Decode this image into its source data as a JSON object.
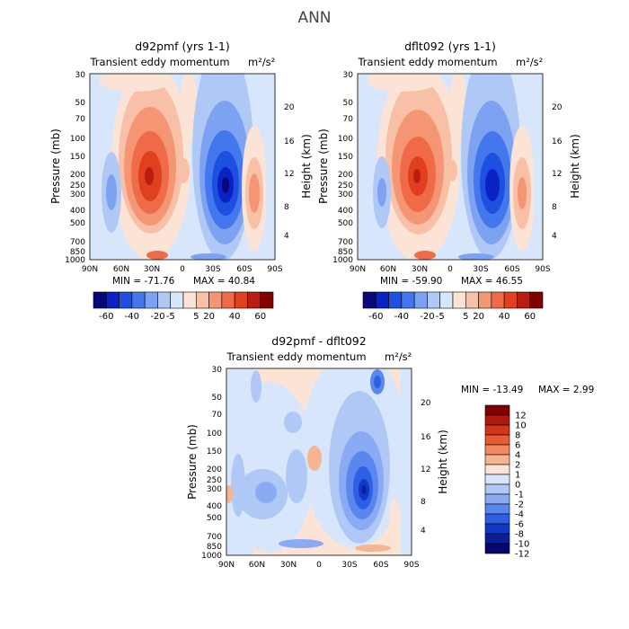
{
  "title": "ANN",
  "chart_data": [
    {
      "type": "heatmap",
      "title": "d92pmf (yrs 1-1)",
      "subtitle": "Transient eddy momentum",
      "units": "m²/s²",
      "ylabel": "Pressure (mb)",
      "ylabel_right": "Height (km)",
      "x_ticks": [
        "90N",
        "60N",
        "30N",
        "0",
        "30S",
        "60S",
        "90S"
      ],
      "y_ticks": [
        "30",
        "50",
        "70",
        "100",
        "150",
        "200",
        "250",
        "300",
        "400",
        "500",
        "700",
        "850",
        "1000"
      ],
      "y_ticks_right": [
        "20",
        "16",
        "12",
        "8",
        "4"
      ],
      "min_label": "MIN = -71.76",
      "max_label": "MAX = 40.84",
      "min": -71.76,
      "max": 40.84,
      "colorbar_labels": [
        "-60",
        "-40",
        "-20",
        "-5",
        "5",
        "20",
        "40",
        "60"
      ]
    },
    {
      "type": "heatmap",
      "title": "dflt092 (yrs 1-1)",
      "subtitle": "Transient eddy momentum",
      "units": "m²/s²",
      "ylabel": "Pressure (mb)",
      "ylabel_right": "Height (km)",
      "x_ticks": [
        "90N",
        "60N",
        "30N",
        "0",
        "30S",
        "60S",
        "90S"
      ],
      "y_ticks": [
        "30",
        "50",
        "70",
        "100",
        "150",
        "200",
        "250",
        "300",
        "400",
        "500",
        "700",
        "850",
        "1000"
      ],
      "y_ticks_right": [
        "20",
        "16",
        "12",
        "8",
        "4"
      ],
      "min_label": "MIN = -59.90",
      "max_label": "MAX = 46.55",
      "min": -59.9,
      "max": 46.55,
      "colorbar_labels": [
        "-60",
        "-40",
        "-20",
        "-5",
        "5",
        "20",
        "40",
        "60"
      ]
    },
    {
      "type": "heatmap",
      "title": "d92pmf - dflt092",
      "subtitle": "Transient eddy momentum",
      "units": "m²/s²",
      "ylabel": "Pressure (mb)",
      "ylabel_right": "Height (km)",
      "x_ticks": [
        "90N",
        "60N",
        "30N",
        "0",
        "30S",
        "60S",
        "90S"
      ],
      "y_ticks": [
        "30",
        "50",
        "70",
        "100",
        "150",
        "200",
        "250",
        "300",
        "400",
        "500",
        "700",
        "850",
        "1000"
      ],
      "y_ticks_right": [
        "20",
        "16",
        "12",
        "8",
        "4"
      ],
      "min_label": "MIN = -13.49",
      "max_label": "MAX =   2.99",
      "min": -13.49,
      "max": 2.99,
      "colorbar_labels": [
        "12",
        "10",
        "8",
        "6",
        "4",
        "2",
        "1",
        "0",
        "-1",
        "-2",
        "-4",
        "-6",
        "-8",
        "-10",
        "-12"
      ]
    }
  ],
  "colors": {
    "abs_scale": [
      "#08087a",
      "#0a22c4",
      "#1d4fe0",
      "#4477ee",
      "#7ea2f2",
      "#b0c8f6",
      "#d8e6fb",
      "#fbe4d5",
      "#f8c0a6",
      "#f49674",
      "#ef6a46",
      "#e0401e",
      "#b81d10",
      "#800000"
    ],
    "diff_scale": [
      "#800000",
      "#b01a0e",
      "#d2351a",
      "#ea5a33",
      "#f28a62",
      "#f7b493",
      "#fbe4d5",
      "#d8e6fb",
      "#b0c8f6",
      "#8aaaf3",
      "#5a87ee",
      "#2f5fe4",
      "#1238c8",
      "#0a1e9a",
      "#06066e"
    ]
  }
}
